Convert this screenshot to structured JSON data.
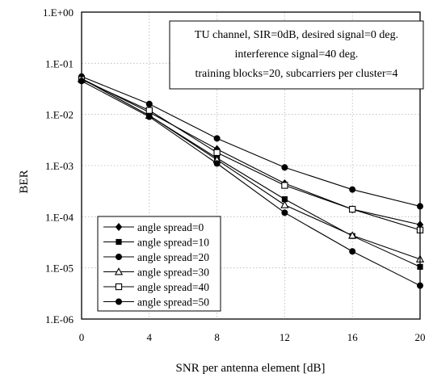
{
  "chart_data": {
    "type": "line",
    "title": "",
    "xlabel": "SNR per antenna element [dB]",
    "ylabel": "BER",
    "x": [
      0,
      4,
      8,
      12,
      16,
      20
    ],
    "xlim": [
      0,
      20
    ],
    "ylim": [
      1e-06,
      1
    ],
    "yscale": "log",
    "xticks": [
      "0",
      "4",
      "8",
      "12",
      "16",
      "20"
    ],
    "yticks": [
      "1.E-06",
      "1.E-05",
      "1.E-04",
      "1.E-03",
      "1.E-02",
      "1.E-01",
      "1.E+00"
    ],
    "grid": true,
    "legend_position": "bottom-left",
    "annotation_lines": [
      "TU channel, SIR=0dB, desired signal=0 deg.",
      "interference signal=40 deg.",
      "training blocks=20, subcarriers per cluster=4"
    ],
    "series": [
      {
        "name": "angle spread=0",
        "marker": "diamond-filled",
        "values": [
          0.05,
          0.011,
          0.0021,
          0.00045,
          0.00014,
          7e-05
        ]
      },
      {
        "name": "angle spread=10",
        "marker": "square-filled",
        "values": [
          0.05,
          0.0095,
          0.0014,
          0.00022,
          4.2e-05,
          1.05e-05
        ]
      },
      {
        "name": "angle spread=20",
        "marker": "circle-filled",
        "values": [
          0.055,
          0.016,
          0.0034,
          0.00092,
          0.00034,
          0.00016
        ]
      },
      {
        "name": "angle spread=30",
        "marker": "triangle-open",
        "values": [
          0.05,
          0.0095,
          0.0013,
          0.00017,
          4.3e-05,
          1.48e-05
        ]
      },
      {
        "name": "angle spread=40",
        "marker": "square-open",
        "values": [
          0.048,
          0.012,
          0.0018,
          0.00041,
          0.00014,
          5.5e-05
        ]
      },
      {
        "name": "angle spread=50",
        "marker": "circle-filled",
        "values": [
          0.045,
          0.009,
          0.0011,
          0.00012,
          2.1e-05,
          4.5e-06
        ]
      }
    ]
  }
}
